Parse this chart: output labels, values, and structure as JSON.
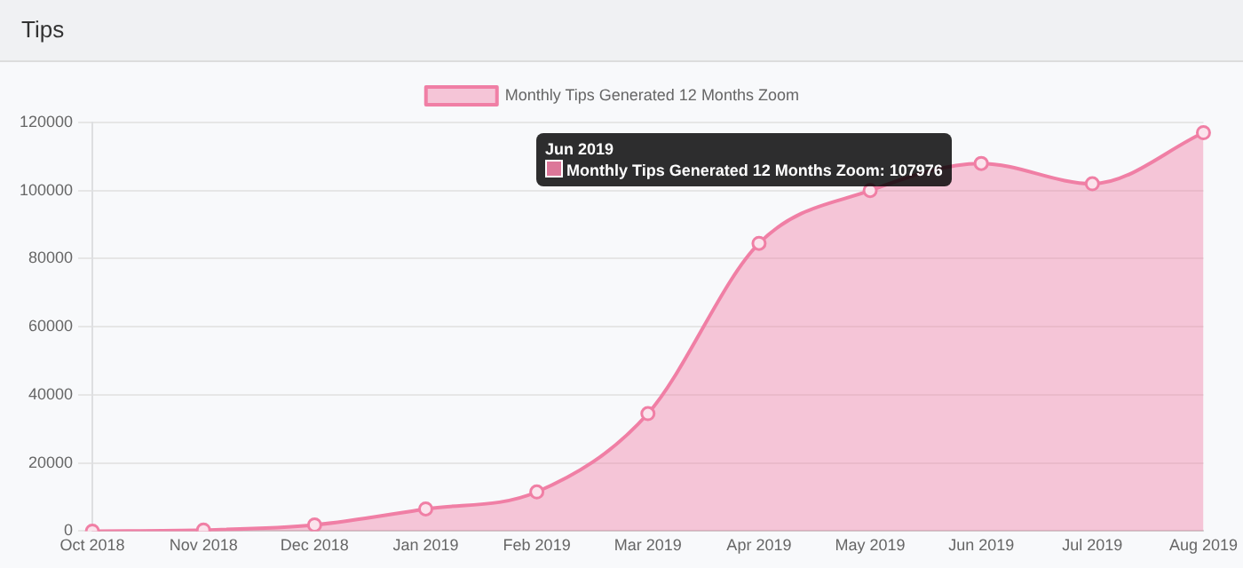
{
  "chart_data": {
    "type": "area",
    "title": "Tips",
    "categories": [
      "Oct 2018",
      "Nov 2018",
      "Dec 2018",
      "Jan 2019",
      "Feb 2019",
      "Mar 2019",
      "Apr 2019",
      "May 2019",
      "Jun 2019",
      "Jul 2019",
      "Aug 2019"
    ],
    "series": [
      {
        "name": "Monthly Tips Generated 12 Months Zoom",
        "color": "#f07fa5",
        "values": [
          0,
          300,
          1800,
          6500,
          11500,
          34500,
          84500,
          100000,
          107976,
          102000,
          117000
        ]
      }
    ],
    "ylim": [
      0,
      120000
    ],
    "yticks": [
      0,
      20000,
      40000,
      60000,
      80000,
      100000,
      120000
    ],
    "grid": "y",
    "legend": "top",
    "marker": "circle",
    "annotations": [
      "Jun 2019",
      "Monthly Tips Generated 12 Months Zoom: 107976"
    ]
  }
}
